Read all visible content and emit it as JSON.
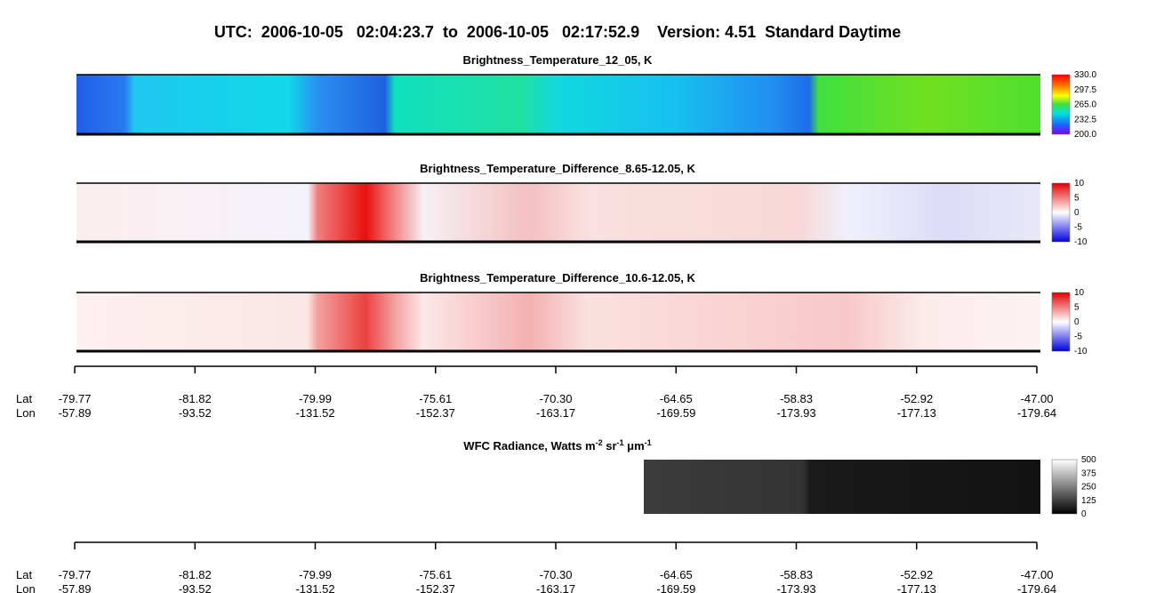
{
  "title": "UTC:  2006-10-05   02:04:23.7  to  2006-10-05   02:17:52.9    Version: 4.51  Standard Daytime",
  "panels": [
    {
      "title": "Brightness_Temperature_12_05, K",
      "colorbar_ticks": [
        "330.0",
        "297.5",
        "265.0",
        "232.5",
        "200.0"
      ]
    },
    {
      "title": "Brightness_Temperature_Difference_8.65-12.05, K",
      "colorbar_ticks": [
        "10",
        "5",
        "0",
        "-5",
        "-10"
      ]
    },
    {
      "title": "Brightness_Temperature_Difference_10.6-12.05, K",
      "colorbar_ticks": [
        "10",
        "5",
        "0",
        "-5",
        "-10"
      ]
    },
    {
      "title_parts": [
        "WFC Radiance, Watts m",
        "-2",
        " sr",
        "-1",
        " μm",
        "-1"
      ],
      "colorbar_ticks": [
        "500",
        "375",
        "250",
        "125",
        "0"
      ]
    }
  ],
  "axes": [
    {
      "lat_label": "Lat",
      "lon_label": "Lon",
      "lat": [
        "-79.77",
        "-81.82",
        "-79.99",
        "-75.61",
        "-70.30",
        "-64.65",
        "-58.83",
        "-52.92",
        "-47.00"
      ],
      "lon": [
        "-57.89",
        "-93.52",
        "-131.52",
        "-152.37",
        "-163.17",
        "-169.59",
        "-173.93",
        "-177.13",
        "-179.64"
      ]
    },
    {
      "lat_label": "Lat",
      "lon_label": "Lon",
      "lat": [
        "-79.77",
        "-81.82",
        "-79.99",
        "-75.61",
        "-70.30",
        "-64.65",
        "-58.83",
        "-52.92",
        "-47.00"
      ],
      "lon": [
        "-57.89",
        "-93.52",
        "-131.52",
        "-152.37",
        "-163.17",
        "-169.59",
        "-173.93",
        "-177.13",
        "-179.64"
      ]
    }
  ]
}
